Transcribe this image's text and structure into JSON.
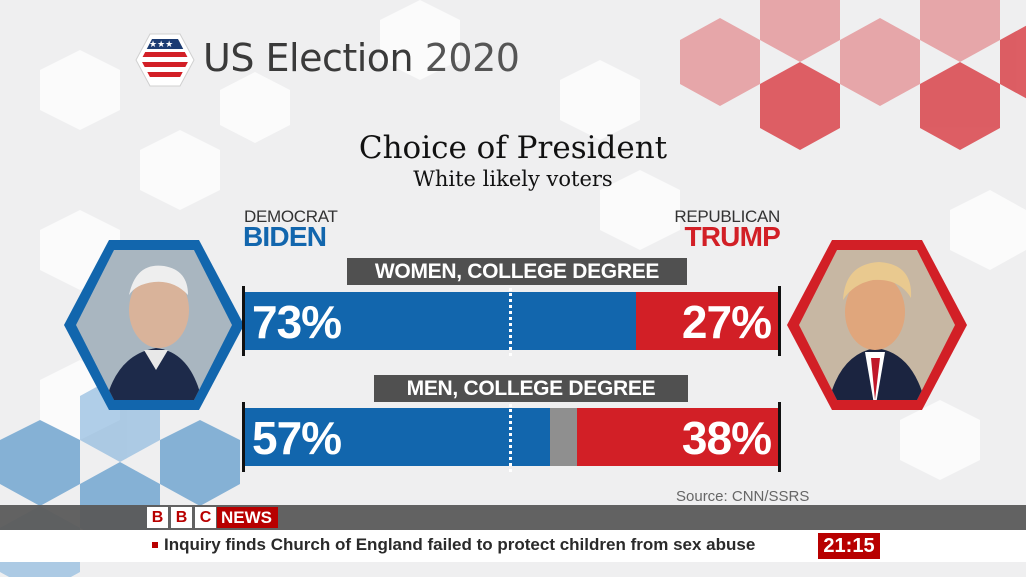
{
  "header": {
    "brand": "US Election",
    "year": "2020",
    "logo_icon": "us-flag-hexagon-icon"
  },
  "chart_data": {
    "type": "bar",
    "orientation": "horizontal-stacked",
    "title": "Choice of President",
    "subtitle": "White likely voters",
    "categories": [
      "WOMEN, COLLEGE DEGREE",
      "MEN, COLLEGE DEGREE"
    ],
    "series": [
      {
        "name": "BIDEN",
        "party": "DEMOCRAT",
        "color": "#1266ad",
        "values": [
          73,
          57
        ],
        "labels": [
          "73%",
          "57%"
        ]
      },
      {
        "name": "Other",
        "color": "#8f8f8f",
        "values": [
          0,
          5
        ]
      },
      {
        "name": "TRUMP",
        "party": "REPUBLICAN",
        "color": "#d21f26",
        "values": [
          27,
          38
        ],
        "labels": [
          "27%",
          "38%"
        ]
      }
    ],
    "xlim": [
      0,
      100
    ],
    "source": "Source: CNN/SSRS"
  },
  "candidates": {
    "left": {
      "party": "DEMOCRAT",
      "name": "BIDEN",
      "portrait_icon": "biden-portrait-icon"
    },
    "right": {
      "party": "REPUBLICAN",
      "name": "TRUMP",
      "portrait_icon": "trump-portrait-icon"
    }
  },
  "broadcast": {
    "channel_letters": [
      "B",
      "B",
      "C"
    ],
    "channel": "NEWS",
    "headline": "Inquiry finds Church of England failed to protect children from sex abuse",
    "time": "21:15"
  }
}
